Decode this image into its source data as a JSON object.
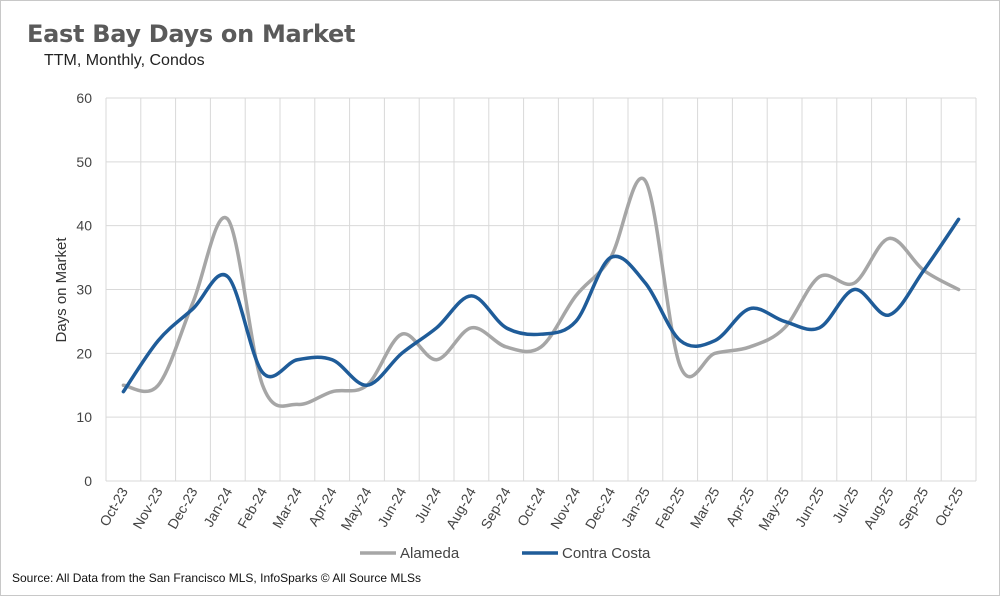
{
  "chart_data": {
    "type": "line",
    "title": "East Bay Days on Market",
    "subtitle": "TTM, Monthly, Condos",
    "xlabel": "",
    "ylabel": "Days on Market",
    "ylim": [
      0,
      60
    ],
    "yticks": [
      0,
      10,
      20,
      30,
      40,
      50,
      60
    ],
    "grid": true,
    "legend_position": "bottom",
    "categories": [
      "Oct-23",
      "Nov-23",
      "Dec-23",
      "Jan-24",
      "Feb-24",
      "Mar-24",
      "Apr-24",
      "May-24",
      "Jun-24",
      "Jul-24",
      "Aug-24",
      "Sep-24",
      "Oct-24",
      "Nov-24",
      "Dec-24",
      "Jan-25",
      "Feb-25",
      "Mar-25",
      "Apr-25",
      "May-25",
      "Jun-25",
      "Jul-25",
      "Aug-25",
      "Sep-25",
      "Oct-25"
    ],
    "series": [
      {
        "name": "Alameda",
        "color": "#a6a6a6",
        "values": [
          15,
          15,
          28,
          41,
          15,
          12,
          14,
          15,
          23,
          19,
          24,
          21,
          21,
          29,
          35,
          47,
          18,
          20,
          21,
          24,
          32,
          31,
          38,
          33,
          30
        ]
      },
      {
        "name": "Contra Costa",
        "color": "#1f5c99",
        "values": [
          14,
          22,
          27,
          32,
          17,
          19,
          19,
          15,
          20,
          24,
          29,
          24,
          23,
          25,
          35,
          31,
          22,
          22,
          27,
          25,
          24,
          30,
          26,
          33,
          41
        ]
      }
    ],
    "source": "Source: All Data from the San Francisco MLS, InfoSparks © All Source MLSs"
  }
}
